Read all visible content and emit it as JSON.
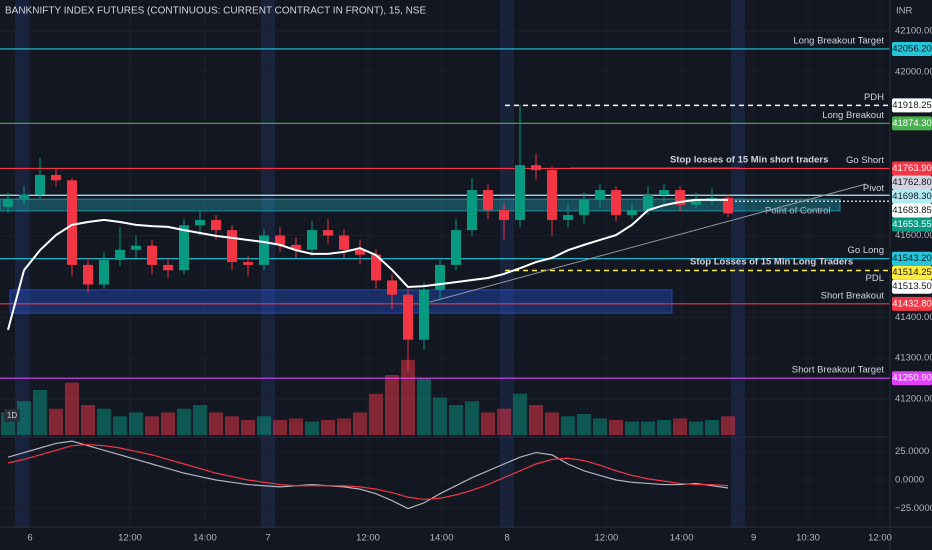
{
  "chart_data": {
    "type": "candlestick",
    "title": "BANKNIFTY INDEX FUTURES (CONTINUOUS: CURRENT CONTRACT IN FRONT), 15, NSE",
    "currency": "INR",
    "interval_badge": "1D",
    "x": [
      0,
      1,
      2,
      3,
      4,
      5,
      6,
      7,
      8,
      9,
      10,
      11,
      12,
      13,
      14,
      15,
      16,
      17,
      18,
      19,
      20,
      21,
      22,
      23,
      24,
      25,
      26,
      27,
      28,
      29,
      30,
      31,
      32,
      33,
      34,
      35,
      36,
      37,
      38,
      39,
      40,
      41,
      42,
      43,
      44,
      45
    ],
    "xlim": [
      -0.5,
      55.125
    ],
    "xticks": [
      {
        "value": 1.375,
        "label": "6"
      },
      {
        "value": 7.625,
        "label": "12:00"
      },
      {
        "value": 12.31,
        "label": "14:00"
      },
      {
        "value": 16.25,
        "label": "7"
      },
      {
        "value": 22.5,
        "label": "12:00"
      },
      {
        "value": 27.1,
        "label": "14:00"
      },
      {
        "value": 31.2,
        "label": "8"
      },
      {
        "value": 37.4,
        "label": "12:00"
      },
      {
        "value": 42.1,
        "label": "14:00"
      },
      {
        "value": 46.6,
        "label": "9"
      },
      {
        "value": 50,
        "label": "10:30"
      },
      {
        "value": 54.5,
        "label": "12:00"
      }
    ],
    "ylim": [
      41112,
      42127
    ],
    "yticks": [
      {
        "value": 42100,
        "label": "42100.00"
      },
      {
        "value": 42000,
        "label": "42000.00"
      },
      {
        "value": 41600,
        "label": "41600.00"
      },
      {
        "value": 41400,
        "label": "41400.00"
      },
      {
        "value": 41300,
        "label": "41300.00"
      },
      {
        "value": 41200,
        "label": "41200.00"
      }
    ],
    "open": [
      41670,
      41690,
      41700,
      41748,
      41735,
      41528,
      41480,
      41540,
      41565,
      41575,
      41528,
      41515,
      41625,
      41638,
      41613,
      41535,
      41528,
      41600,
      41577,
      41565,
      41613,
      41600,
      41565,
      41553,
      41490,
      41455,
      41345,
      41467,
      41528,
      41613,
      41711,
      41662,
      41638,
      41772,
      41760,
      41638,
      41650,
      41687,
      41711,
      41650,
      41662,
      41699,
      41711,
      41675,
      41687,
      41692
    ],
    "high": [
      41705,
      41720,
      41790,
      41765,
      41740,
      41545,
      41560,
      41620,
      41600,
      41590,
      41545,
      41640,
      41660,
      41650,
      41625,
      41550,
      41615,
      41620,
      41595,
      41635,
      41640,
      41615,
      41590,
      41565,
      41505,
      41470,
      41485,
      41545,
      41640,
      41740,
      41725,
      41680,
      41919,
      41800,
      41770,
      41680,
      41705,
      41725,
      41720,
      41680,
      41720,
      41725,
      41720,
      41705,
      41715,
      41700
    ],
    "low": [
      41655,
      41675,
      41690,
      41720,
      41500,
      41460,
      41470,
      41525,
      41540,
      41505,
      41495,
      41505,
      41600,
      41590,
      41515,
      41500,
      41515,
      41560,
      41545,
      41550,
      41580,
      41545,
      41530,
      41470,
      41420,
      41270,
      41320,
      41440,
      41515,
      41600,
      41640,
      41590,
      41620,
      41735,
      41600,
      41620,
      41630,
      41670,
      41635,
      41640,
      41650,
      41680,
      41660,
      41665,
      41675,
      41645
    ],
    "close": [
      41690,
      41700,
      41748,
      41735,
      41528,
      41480,
      41540,
      41565,
      41575,
      41528,
      41515,
      41625,
      41638,
      41613,
      41535,
      41528,
      41600,
      41577,
      41565,
      41613,
      41600,
      41565,
      41553,
      41490,
      41455,
      41345,
      41467,
      41528,
      41613,
      41711,
      41662,
      41638,
      41772,
      41760,
      41638,
      41650,
      41687,
      41711,
      41650,
      41662,
      41699,
      41711,
      41675,
      41687,
      41692,
      41654
    ],
    "up_color": "#089981",
    "down_color": "#f23645",
    "vwap": {
      "color": "#ffffff",
      "values": [
        41369,
        41515,
        41564,
        41601,
        41626,
        41633,
        41638,
        41633,
        41626,
        41623,
        41621,
        41613,
        41606,
        41599,
        41594,
        41589,
        41584,
        41577,
        41564,
        41555,
        41555,
        41560,
        41569,
        41552,
        41516,
        41474,
        41476,
        41481,
        41486,
        41491,
        41496,
        41506,
        41520,
        41535,
        41545,
        41564,
        41577,
        41589,
        41601,
        41626,
        41662,
        41674,
        41682,
        41687,
        41687,
        41687
      ]
    },
    "volume": {
      "vlim": [
        0,
        100
      ],
      "values": [
        30,
        45,
        60,
        35,
        70,
        40,
        35,
        25,
        30,
        25,
        30,
        35,
        40,
        30,
        25,
        20,
        25,
        20,
        22,
        18,
        20,
        22,
        30,
        55,
        80,
        100,
        75,
        50,
        40,
        45,
        30,
        35,
        55,
        40,
        30,
        25,
        28,
        22,
        20,
        18,
        18,
        20,
        22,
        18,
        20,
        25
      ]
    },
    "oscillator": {
      "ylim": [
        -35,
        35
      ],
      "yticks": [
        {
          "value": 25,
          "label": "25.0000"
        },
        {
          "value": 0,
          "label": "0.0000"
        },
        {
          "value": -25,
          "label": "−25.0000"
        }
      ],
      "series": [
        {
          "color": "#b2b5be",
          "values": [
            20,
            24,
            28,
            32,
            34,
            30,
            26,
            22,
            18,
            14,
            10,
            6,
            3,
            0,
            -2,
            -4,
            -5,
            -6,
            -5,
            -4,
            -5,
            -6,
            -8,
            -12,
            -18,
            -25,
            -20,
            -12,
            -5,
            2,
            8,
            14,
            20,
            24,
            22,
            14,
            8,
            4,
            0,
            -2,
            -3,
            -4,
            -4,
            -3,
            -5,
            -7
          ]
        },
        {
          "color": "#f23645",
          "values": [
            15,
            18,
            22,
            26,
            30,
            31,
            30,
            28,
            25,
            22,
            18,
            14,
            10,
            6,
            3,
            0,
            -2,
            -4,
            -5,
            -5,
            -5,
            -5,
            -6,
            -8,
            -11,
            -15,
            -17,
            -16,
            -13,
            -9,
            -4,
            2,
            8,
            14,
            18,
            19,
            17,
            13,
            8,
            4,
            1,
            -1,
            -3,
            -4,
            -4,
            -5
          ]
        }
      ]
    },
    "zones": [
      {
        "top": 41467,
        "bottom": 41410,
        "color": "#2962ff"
      },
      {
        "top": 41689,
        "bottom": 41660,
        "color": "#26c6da"
      }
    ],
    "levels": [
      {
        "name": "Long Breakout Target",
        "value": 42056.2,
        "label": "42056.20",
        "color": "#26c6da",
        "text_color": "#131722",
        "style": "solid"
      },
      {
        "name": "PDH",
        "value": 41918.25,
        "label": "41918.25",
        "color": "#ffffff",
        "text_color": "#131722",
        "style": "dashed"
      },
      {
        "name": "Long Breakout",
        "value": 41874.3,
        "label": "41874.30",
        "color": "#4caf50",
        "text_color": "#ffffff",
        "style": "solid"
      },
      {
        "name": "Go Short",
        "value": 41763.9,
        "label": "41763.90",
        "color": "#f23645",
        "text_color": "#ffffff",
        "style": "solid"
      },
      {
        "value": 41762.8,
        "label": "41762.80",
        "color": "#d1d4dc",
        "text_color": "#131722",
        "style": "none"
      },
      {
        "name": "Pivot",
        "value": 41698.3,
        "label": "41698.30",
        "color": "#b2ebf2",
        "text_color": "#131722",
        "style": "solid"
      },
      {
        "value": 41683.85,
        "label": "41683.85",
        "color": "#ffffff",
        "text_color": "#131722",
        "style": "dotted"
      },
      {
        "value": 41653.55,
        "label": "41653.55",
        "color": "#089981",
        "text_color": "#ffffff",
        "style": "none"
      },
      {
        "name": "Go Long",
        "value": 41543.2,
        "label": "41543.20",
        "color": "#26c6da",
        "text_color": "#131722",
        "style": "solid"
      },
      {
        "value": 41514.25,
        "label": "41514.25",
        "color": "#ffeb3b",
        "text_color": "#131722",
        "style": "dashed"
      },
      {
        "name": "PDL",
        "value": 41513.5,
        "label": "41513.50",
        "color": "#ffffff",
        "text_color": "#131722",
        "style": "none"
      },
      {
        "name": "Short Breakout",
        "value": 41432.8,
        "label": "41432.80",
        "color": "#f23645",
        "text_color": "#ffffff",
        "style": "solid"
      },
      {
        "name": "Short Breakout Target",
        "value": 41250.9,
        "label": "41250.90",
        "color": "#e040fb",
        "text_color": "#ffffff",
        "style": "solid"
      }
    ],
    "annotations": {
      "short_stops": "Stop losses of 15 Min short traders",
      "long_stops": "Stop Losses of  15 Min Long Traders",
      "poc": "Point of Control"
    }
  }
}
